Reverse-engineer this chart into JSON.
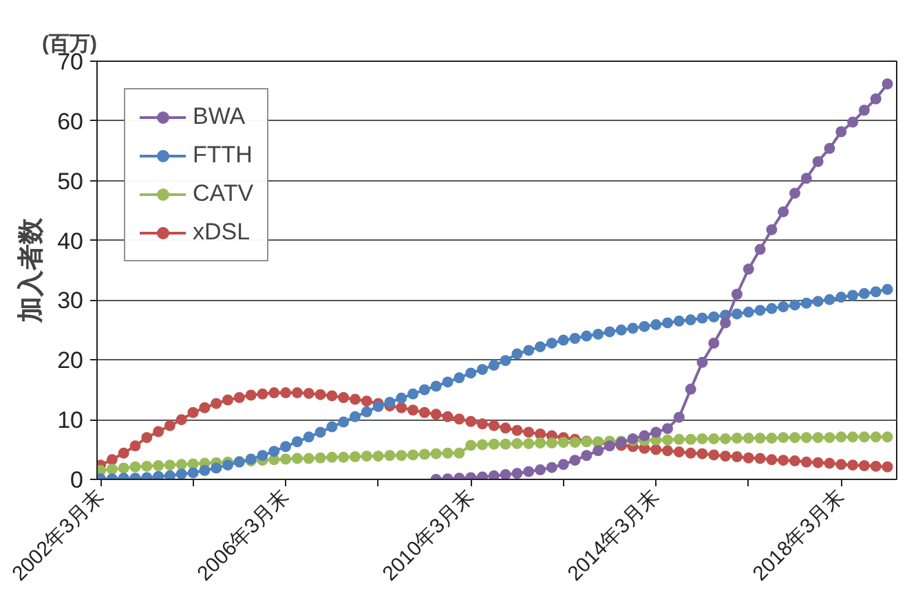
{
  "chart_data": {
    "type": "line",
    "ylabel": "加入者数",
    "annotations": [
      "(百万)"
    ],
    "categories": [
      "2002年3月末",
      null,
      null,
      null,
      null,
      null,
      null,
      null,
      null,
      null,
      null,
      null,
      null,
      null,
      null,
      null,
      "2006年3月末",
      null,
      null,
      null,
      null,
      null,
      null,
      null,
      null,
      null,
      null,
      null,
      null,
      null,
      null,
      null,
      "2010年3月末",
      null,
      null,
      null,
      null,
      null,
      null,
      null,
      null,
      null,
      null,
      null,
      null,
      null,
      null,
      null,
      "2014年3月末",
      null,
      null,
      null,
      null,
      null,
      null,
      null,
      null,
      null,
      null,
      null,
      null,
      null,
      null,
      null,
      "2018年3月末",
      null,
      null,
      null,
      null
    ],
    "series": [
      {
        "name": "BWA",
        "color": "#8064a2",
        "values": [
          null,
          null,
          null,
          null,
          null,
          null,
          null,
          null,
          null,
          null,
          null,
          null,
          null,
          null,
          null,
          null,
          null,
          null,
          null,
          null,
          null,
          null,
          null,
          null,
          null,
          null,
          null,
          null,
          null,
          0.0,
          0.1,
          0.2,
          0.3,
          0.4,
          0.6,
          0.8,
          1.0,
          1.3,
          1.6,
          2.0,
          2.5,
          3.2,
          4.0,
          4.8,
          5.6,
          6.2,
          6.8,
          7.3,
          7.9,
          8.5,
          10.4,
          15.1,
          19.6,
          22.8,
          26.2,
          31,
          35.2,
          38.5,
          41.8,
          44.8,
          47.9,
          50.4,
          53.2,
          55.4,
          58.2,
          59.8,
          61.8,
          63.7,
          66.2
        ]
      },
      {
        "name": "FTTH",
        "color": "#4f81bd",
        "values": [
          0.1,
          0.1,
          0.2,
          0.2,
          0.3,
          0.5,
          0.6,
          0.9,
          1.1,
          1.5,
          1.9,
          2.4,
          2.9,
          3.4,
          4.0,
          4.7,
          5.5,
          6.3,
          7.1,
          7.9,
          8.8,
          9.6,
          10.5,
          11.3,
          12.2,
          12.9,
          13.6,
          14.3,
          15.0,
          15.6,
          16.3,
          17.0,
          17.8,
          18.4,
          19.1,
          19.9,
          21.0,
          21.6,
          22.2,
          22.8,
          23.3,
          23.6,
          24.0,
          24.3,
          24.7,
          25.0,
          25.3,
          25.6,
          25.9,
          26.2,
          26.5,
          26.7,
          27.0,
          27.2,
          27.5,
          27.7,
          28.0,
          28.3,
          28.6,
          28.9,
          29.2,
          29.5,
          29.8,
          30.1,
          30.5,
          30.8,
          31.1,
          31.4,
          31.8
        ]
      },
      {
        "name": "CATV",
        "color": "#9bbb59",
        "values": [
          1.5,
          1.7,
          1.9,
          2.1,
          2.2,
          2.3,
          2.4,
          2.5,
          2.6,
          2.7,
          2.8,
          2.9,
          3.0,
          3.1,
          3.2,
          3.3,
          3.4,
          3.5,
          3.5,
          3.6,
          3.7,
          3.7,
          3.8,
          3.9,
          3.9,
          4.0,
          4.0,
          4.1,
          4.2,
          4.3,
          4.4,
          4.4,
          5.7,
          5.8,
          5.9,
          5.9,
          6.0,
          6.0,
          6.1,
          6.1,
          6.2,
          6.2,
          6.3,
          6.3,
          6.4,
          6.4,
          6.5,
          6.5,
          6.6,
          6.6,
          6.7,
          6.7,
          6.8,
          6.8,
          6.8,
          6.9,
          6.9,
          6.9,
          6.9,
          7.0,
          7.0,
          7.0,
          7.0,
          7.0,
          7.1,
          7.1,
          7.1,
          7.1,
          7.1
        ]
      },
      {
        "name": "xDSL",
        "color": "#c0504d",
        "values": [
          2.4,
          3.3,
          4.4,
          5.6,
          7.0,
          8.0,
          9.0,
          10.0,
          11.2,
          12.0,
          12.7,
          13.3,
          13.7,
          14.1,
          14.3,
          14.5,
          14.5,
          14.5,
          14.4,
          14.2,
          14.0,
          13.7,
          13.4,
          13.1,
          12.7,
          12.3,
          12.0,
          11.6,
          11.2,
          10.9,
          10.5,
          10.1,
          9.7,
          9.3,
          9.0,
          8.6,
          8.2,
          7.9,
          7.6,
          7.3,
          7.0,
          6.7,
          6.4,
          6.2,
          5.9,
          5.7,
          5.5,
          5.2,
          5.0,
          4.8,
          4.6,
          4.4,
          4.3,
          4.1,
          3.9,
          3.8,
          3.6,
          3.5,
          3.3,
          3.2,
          3.1,
          2.9,
          2.8,
          2.7,
          2.5,
          2.4,
          2.3,
          2.2,
          2.1
        ]
      }
    ],
    "ylim": [
      0,
      70
    ],
    "yticks": [
      0,
      10,
      20,
      30,
      40,
      50,
      60,
      70
    ],
    "grid": "y",
    "legend": "top left",
    "marker": "circle",
    "line_style": "solid"
  }
}
